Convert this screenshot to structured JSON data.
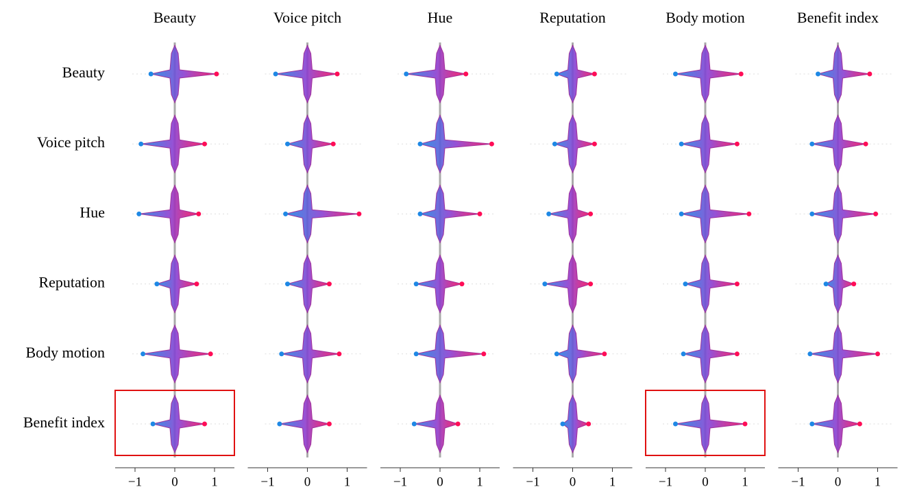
{
  "chart_data": {
    "type": "beeswarm-grid",
    "rows": [
      "Beauty",
      "Voice pitch",
      "Hue",
      "Reputation",
      "Body motion",
      "Benefit index"
    ],
    "colors": [
      "#1e88e5",
      "#8a3fd1",
      "#ff0d57"
    ],
    "columns": [
      {
        "title": "Beauty",
        "xlim": [
          -1.5,
          1.5
        ],
        "xticks": [
          {
            "value": -1,
            "label": "−1"
          },
          0,
          1
        ],
        "min": [
          -0.6,
          -0.85,
          -0.9,
          -0.45,
          -0.8,
          -0.55
        ],
        "max": [
          1.05,
          0.75,
          0.6,
          0.55,
          0.9,
          0.75
        ],
        "highlight": [
          false,
          false,
          false,
          false,
          false,
          true
        ]
      },
      {
        "title": "Voice pitch",
        "xlim": [
          -1.5,
          1.5
        ],
        "xticks": [
          {
            "value": -1,
            "label": "−1"
          },
          0,
          1
        ],
        "min": [
          -0.8,
          -0.5,
          -0.55,
          -0.5,
          -0.65,
          -0.7
        ],
        "max": [
          0.75,
          0.65,
          1.3,
          0.55,
          0.8,
          0.55
        ]
      },
      {
        "title": "Hue",
        "xlim": [
          -1.5,
          1.5
        ],
        "xticks": [
          {
            "value": -1,
            "label": "−1"
          },
          0,
          1
        ],
        "min": [
          -0.85,
          -0.5,
          -0.5,
          -0.6,
          -0.6,
          -0.65
        ],
        "max": [
          0.65,
          1.3,
          1.0,
          0.55,
          1.1,
          0.45
        ]
      },
      {
        "title": "Reputation",
        "xlim": [
          -1.5,
          1.5
        ],
        "xticks": [
          {
            "value": -1,
            "label": "−1"
          },
          0,
          1
        ],
        "min": [
          -0.4,
          -0.45,
          -0.6,
          -0.7,
          -0.4,
          -0.25
        ],
        "max": [
          0.55,
          0.55,
          0.45,
          0.45,
          0.8,
          0.4
        ]
      },
      {
        "title": "Body motion",
        "xlim": [
          -1.5,
          1.5
        ],
        "xticks": [
          {
            "value": -1,
            "label": "−1"
          },
          0,
          1
        ],
        "min": [
          -0.75,
          -0.6,
          -0.6,
          -0.5,
          -0.55,
          -0.75
        ],
        "max": [
          0.9,
          0.8,
          1.1,
          0.8,
          0.8,
          1.0
        ],
        "highlight": [
          false,
          false,
          false,
          false,
          false,
          true
        ]
      },
      {
        "title": "Benefit index",
        "xlim": [
          -1.5,
          1.5
        ],
        "xticks": [
          {
            "value": -1,
            "label": "−1"
          },
          0,
          1
        ],
        "min": [
          -0.5,
          -0.65,
          -0.65,
          -0.3,
          -0.7,
          -0.65
        ],
        "max": [
          0.8,
          0.7,
          0.95,
          0.4,
          1.0,
          0.55
        ]
      }
    ]
  }
}
